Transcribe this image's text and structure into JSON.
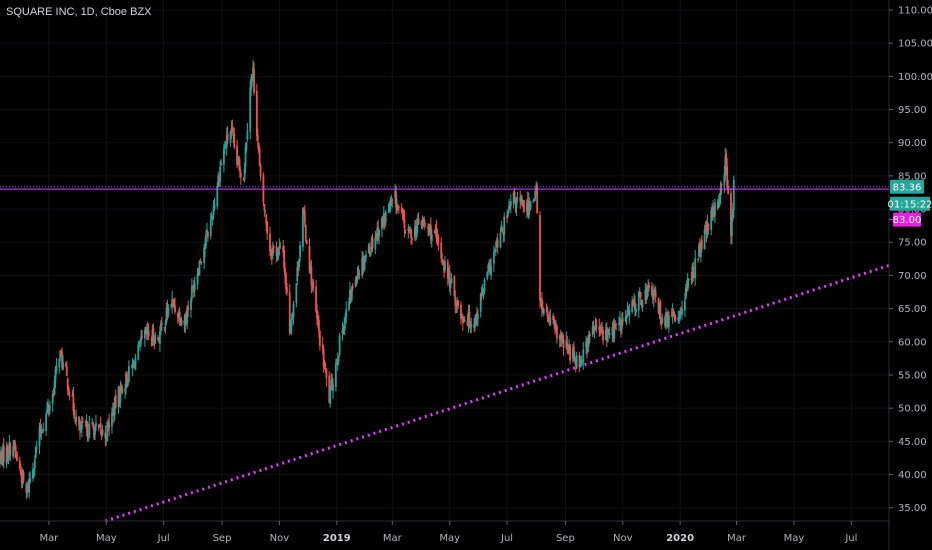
{
  "chart_data": {
    "type": "candlestick",
    "title": "SQUARE INC, 1D, Cboe BZX",
    "xlabel": "",
    "ylabel": "",
    "ylim": [
      33.0,
      111.5
    ],
    "y_ticks": [
      35,
      40,
      45,
      50,
      55,
      60,
      65,
      70,
      75,
      80,
      85,
      90,
      95,
      100,
      105,
      110
    ],
    "y_tick_labels": [
      "35.00",
      "40.00",
      "45.00",
      "50.00",
      "55.00",
      "60.00",
      "65.00",
      "70.00",
      "75.00",
      "80.00",
      "85.00",
      "90.00",
      "95.00",
      "100.00",
      "105.00",
      "110.00"
    ],
    "x_tick_labels": [
      "Mar",
      "May",
      "Jul",
      "Sep",
      "Nov",
      "2019",
      "Mar",
      "May",
      "Jul",
      "Sep",
      "Nov",
      "2020",
      "Mar",
      "May",
      "Jul"
    ],
    "x_tick_dates": [
      "2018-03-01",
      "2018-05-01",
      "2018-07-01",
      "2018-09-01",
      "2018-11-01",
      "2019-01-01",
      "2019-03-01",
      "2019-05-01",
      "2019-07-01",
      "2019-09-01",
      "2019-11-01",
      "2020-01-01",
      "2020-03-01",
      "2020-05-01",
      "2020-07-01"
    ],
    "x_range": [
      "2018-01-08",
      "2020-08-10"
    ],
    "price_labels": {
      "last": "83.36",
      "countdown": "01:15:22",
      "level": "83.00"
    },
    "horizontal_lines": [
      {
        "value": 83.36,
        "color": "#4a6fd6",
        "style": "dotted"
      },
      {
        "value": 83.0,
        "color": "#e040fb",
        "style": "solid"
      }
    ],
    "trendline": {
      "points": [
        [
          "2018-04-30",
          33.0
        ],
        [
          "2020-08-10",
          71.5
        ]
      ],
      "color": "#e040fb",
      "style": "dotted"
    },
    "price_path": [
      [
        "2018-01-08",
        42.5
      ],
      [
        "2018-01-22",
        44.5
      ],
      [
        "2018-02-05",
        37.0
      ],
      [
        "2018-02-19",
        46.0
      ],
      [
        "2018-03-05",
        52.0
      ],
      [
        "2018-03-12",
        58.5
      ],
      [
        "2018-03-19",
        55.0
      ],
      [
        "2018-04-02",
        46.5
      ],
      [
        "2018-04-16",
        47.0
      ],
      [
        "2018-04-30",
        46.0
      ],
      [
        "2018-05-14",
        52.0
      ],
      [
        "2018-05-28",
        56.0
      ],
      [
        "2018-06-11",
        61.0
      ],
      [
        "2018-06-25",
        60.5
      ],
      [
        "2018-07-09",
        66.0
      ],
      [
        "2018-07-23",
        63.0
      ],
      [
        "2018-08-06",
        71.0
      ],
      [
        "2018-08-20",
        78.0
      ],
      [
        "2018-09-01",
        88.0
      ],
      [
        "2018-09-10",
        92.0
      ],
      [
        "2018-09-17",
        87.0
      ],
      [
        "2018-09-24",
        85.0
      ],
      [
        "2018-10-01",
        99.0
      ],
      [
        "2018-10-04",
        100.5
      ],
      [
        "2018-10-12",
        84.0
      ],
      [
        "2018-10-22",
        74.0
      ],
      [
        "2018-11-05",
        73.5
      ],
      [
        "2018-11-12",
        62.0
      ],
      [
        "2018-11-19",
        69.0
      ],
      [
        "2018-11-26",
        79.5
      ],
      [
        "2018-12-10",
        64.0
      ],
      [
        "2018-12-24",
        51.5
      ],
      [
        "2019-01-07",
        62.0
      ],
      [
        "2019-01-21",
        70.0
      ],
      [
        "2019-02-04",
        74.0
      ],
      [
        "2019-02-18",
        78.0
      ],
      [
        "2019-03-04",
        81.5
      ],
      [
        "2019-03-18",
        76.0
      ],
      [
        "2019-04-01",
        78.0
      ],
      [
        "2019-04-15",
        76.0
      ],
      [
        "2019-04-29",
        70.0
      ],
      [
        "2019-05-13",
        64.0
      ],
      [
        "2019-05-27",
        63.0
      ],
      [
        "2019-06-10",
        70.0
      ],
      [
        "2019-06-24",
        76.0
      ],
      [
        "2019-07-08",
        81.5
      ],
      [
        "2019-07-22",
        80.0
      ],
      [
        "2019-08-01",
        83.0
      ],
      [
        "2019-08-05",
        66.0
      ],
      [
        "2019-08-19",
        62.0
      ],
      [
        "2019-09-02",
        59.0
      ],
      [
        "2019-09-16",
        57.0
      ],
      [
        "2019-10-01",
        62.0
      ],
      [
        "2019-10-15",
        61.0
      ],
      [
        "2019-11-01",
        63.0
      ],
      [
        "2019-11-15",
        66.0
      ],
      [
        "2019-12-01",
        68.0
      ],
      [
        "2019-12-15",
        63.0
      ],
      [
        "2019-12-30",
        64.0
      ],
      [
        "2020-01-13",
        70.0
      ],
      [
        "2020-01-27",
        76.0
      ],
      [
        "2020-02-10",
        81.0
      ],
      [
        "2020-02-18",
        87.0
      ],
      [
        "2020-02-24",
        77.0
      ],
      [
        "2020-02-27",
        83.36
      ]
    ]
  }
}
